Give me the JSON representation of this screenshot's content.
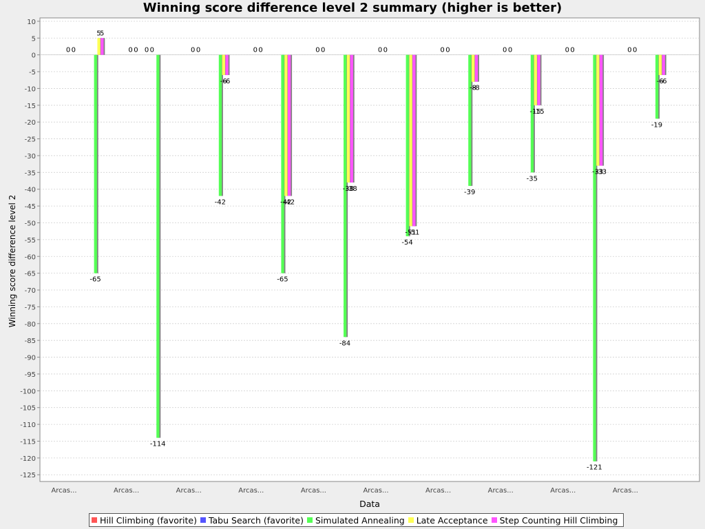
{
  "chart_data": {
    "type": "bar",
    "title": "Winning score difference level 2 summary (higher is better)",
    "xlabel": "Data",
    "ylabel": "Winning score difference level 2",
    "ylim": [
      -127,
      11
    ],
    "yticks": [
      10,
      5,
      0,
      -5,
      -10,
      -15,
      -20,
      -25,
      -30,
      -35,
      -40,
      -45,
      -50,
      -55,
      -60,
      -65,
      -70,
      -75,
      -80,
      -85,
      -90,
      -95,
      -100,
      -105,
      -110,
      -115,
      -120,
      -125
    ],
    "grid": true,
    "legend_position": "bottom",
    "categories": [
      "Arcas...",
      "Arcas...",
      "Arcas...",
      "Arcas...",
      "Arcas...",
      "Arcas...",
      "Arcas...",
      "Arcas...",
      "Arcas...",
      "Arcas..."
    ],
    "series": [
      {
        "name": "Hill Climbing (favorite)",
        "color": "#ff5555",
        "values": [
          0,
          0,
          0,
          0,
          0,
          0,
          0,
          0,
          0,
          0
        ]
      },
      {
        "name": "Tabu Search (favorite)",
        "color": "#5555ff",
        "values": [
          0,
          0,
          0,
          0,
          0,
          0,
          0,
          0,
          0,
          0
        ]
      },
      {
        "name": "Simulated Annealing",
        "color": "#55ff55",
        "values": [
          -65,
          -114,
          -42,
          -65,
          -84,
          -54,
          -39,
          -35,
          -121,
          -19
        ]
      },
      {
        "name": "Late Acceptance",
        "color": "#ffff55",
        "values": [
          5,
          0,
          -6,
          -42,
          -38,
          -51,
          -8,
          -15,
          -33,
          -6
        ]
      },
      {
        "name": "Step Counting Hill Climbing",
        "color": "#ff55ff",
        "values": [
          5,
          0,
          -6,
          -42,
          -38,
          -51,
          -8,
          -15,
          -33,
          -6
        ]
      }
    ]
  }
}
